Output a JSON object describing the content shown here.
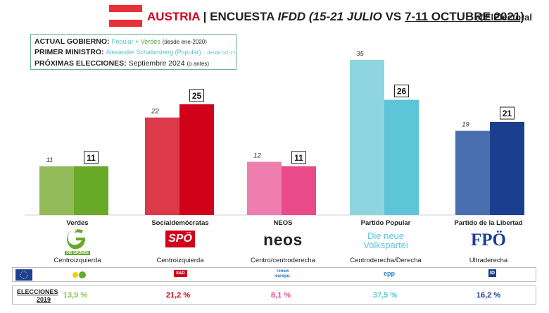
{
  "header": {
    "country": "AUSTRIA",
    "sep": "|",
    "encuesta_prefix": "ENCUESTA ",
    "pollster": "IFDD",
    "period_old": "(15-21 JULIO",
    "vs": " VS ",
    "period_new": "7-11 OCTUBRE 2021",
    "close": ")",
    "handle": "@ElElectoral"
  },
  "flag_colors": [
    "#e8303a",
    "#ffffff",
    "#e8303a"
  ],
  "info": {
    "gobierno_label": "ACTUAL GOBIERNO:",
    "gobierno_p1": "Popular",
    "gobierno_plus": " + ",
    "gobierno_p2": "Verdes",
    "gobierno_since": "(desde ene-2020)",
    "pm_label": "PRIMER MINISTRO:",
    "pm_value": "Alexander Schallenberg (Popular)",
    "pm_since": "– desde oct-21",
    "elec_label": "PRÓXIMAS ELECCIONES:",
    "elec_value": "Septiembre 2024",
    "elec_note": "(o antes)"
  },
  "chart_data": {
    "type": "bar",
    "categories": [
      "Verdes",
      "Socialdemócratas",
      "NEOS",
      "Partido Popular",
      "Partido de la Libertad"
    ],
    "series": [
      {
        "values": [
          11,
          22,
          12,
          35,
          19
        ]
      },
      {
        "values": [
          11,
          25,
          11,
          26,
          21
        ]
      }
    ],
    "colors_old": [
      "#93bb5a",
      "#dc3a48",
      "#ee7fb0",
      "#8fd5e0",
      "#4a6fae"
    ],
    "colors_new": [
      "#68a928",
      "#d0021b",
      "#e94b8a",
      "#5cc6d8",
      "#1a3f8f"
    ],
    "ylim": [
      0,
      35
    ]
  },
  "parties": [
    {
      "name": "Verdes",
      "ideology": "Centroizquierda",
      "logo": "DIE GRÜNEN",
      "eu_group": "green-group-icon",
      "elections_2019": "13,9 %",
      "color": "#8cc84b"
    },
    {
      "name": "Socialdemócratas",
      "ideology": "Centroizquierda",
      "logo": "SPÖ",
      "eu_group": "s-and-d-icon",
      "elections_2019": "21,2 %",
      "color": "#d0021b"
    },
    {
      "name": "NEOS",
      "ideology": "Centro/centroderecha",
      "logo": "neos",
      "eu_group": "renew-europe-icon",
      "elections_2019": "8,1 %",
      "color": "#e94b8a"
    },
    {
      "name": "Partido Popular",
      "ideology": "Centroderecha/Derecha",
      "logo_line1": "Die neue",
      "logo_line2": "Volkspartei",
      "eu_group": "epp-icon",
      "elections_2019": "37,5 %",
      "color": "#5cc6d8"
    },
    {
      "name": "Partido de la Libertad",
      "ideology": "Ultraderecha",
      "logo": "FPÖ",
      "eu_group": "id-group-icon",
      "elections_2019": "16,2 %",
      "color": "#1a3f8f"
    }
  ],
  "eu_logos": {
    "sd": "S&D",
    "renew_1": "renew",
    "renew_2": "europe.",
    "epp": "epp",
    "id": "ID"
  },
  "elections": {
    "label_1": "ELECCIONES",
    "label_2": "2019"
  }
}
